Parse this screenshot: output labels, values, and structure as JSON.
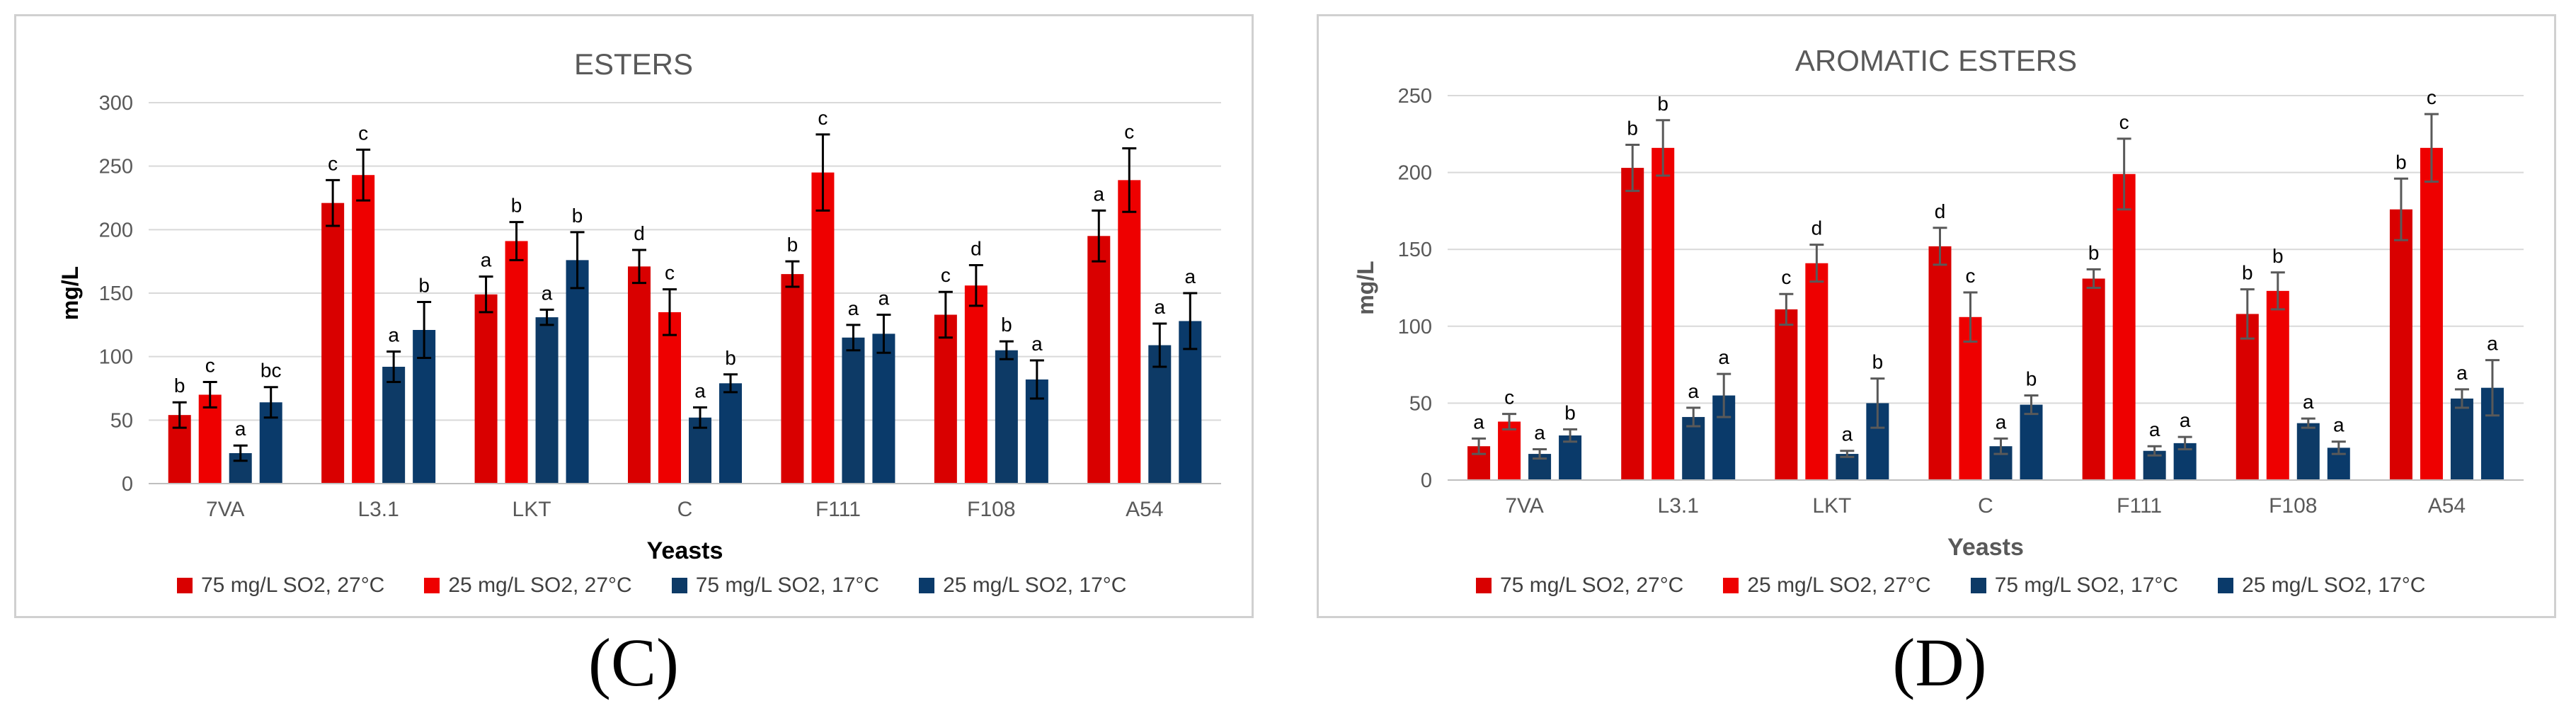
{
  "chart_data": [
    {
      "type": "bar",
      "title": "ESTERS",
      "panel_label": "(C)",
      "xlabel": "Yeasts",
      "ylabel": "mg/L",
      "ylim": [
        0,
        300
      ],
      "yticks": [
        0,
        50,
        100,
        150,
        200,
        250,
        300
      ],
      "categories": [
        "7VA",
        "L3.1",
        "LKT",
        "C",
        "F111",
        "F108",
        "A54"
      ],
      "legend_position": "bottom",
      "series": [
        {
          "name": "75 mg/L SO2, 27°C",
          "color": "#d90000",
          "values": [
            54,
            221,
            149,
            171,
            165,
            133,
            195
          ],
          "errors": [
            10,
            18,
            14,
            13,
            10,
            18,
            20
          ],
          "letters": [
            "b",
            "c",
            "a",
            "d",
            "b",
            "c",
            "a"
          ]
        },
        {
          "name": "25 mg/L SO2, 27°C",
          "color": "#ee0000",
          "values": [
            70,
            243,
            191,
            135,
            245,
            156,
            239
          ],
          "errors": [
            10,
            20,
            15,
            18,
            30,
            16,
            25
          ],
          "letters": [
            "c",
            "c",
            "b",
            "c",
            "c",
            "d",
            "c"
          ]
        },
        {
          "name": "75 mg/L SO2, 17°C",
          "color": "#0d3a66",
          "values": [
            24,
            92,
            131,
            52,
            115,
            105,
            109
          ],
          "errors": [
            6,
            12,
            6,
            8,
            10,
            7,
            17
          ],
          "letters": [
            "a",
            "a",
            "a",
            "a",
            "a",
            "b",
            "a"
          ]
        },
        {
          "name": "25 mg/L SO2, 17°C",
          "color": "#0a3a6a",
          "values": [
            64,
            121,
            176,
            79,
            118,
            82,
            128
          ],
          "errors": [
            12,
            22,
            22,
            7,
            15,
            15,
            22
          ],
          "letters": [
            "bc",
            "b",
            "b",
            "b",
            "a",
            "a",
            "a"
          ]
        }
      ]
    },
    {
      "type": "bar",
      "title": "AROMATIC ESTERS",
      "panel_label": "(D)",
      "xlabel": "Yeasts",
      "ylabel": "mg/L",
      "ylim": [
        0,
        250
      ],
      "yticks": [
        0,
        50,
        100,
        150,
        200,
        250
      ],
      "categories": [
        "7VA",
        "L3.1",
        "LKT",
        "C",
        "F111",
        "F108",
        "A54"
      ],
      "legend_position": "bottom",
      "series": [
        {
          "name": "75 mg/L SO2, 27°C",
          "color": "#d90000",
          "values": [
            22,
            203,
            111,
            152,
            131,
            108,
            176
          ],
          "errors": [
            5,
            15,
            10,
            12,
            6,
            16,
            20
          ],
          "letters": [
            "a",
            "b",
            "c",
            "d",
            "b",
            "b",
            "b"
          ]
        },
        {
          "name": "25 mg/L SO2, 27°C",
          "color": "#ee0000",
          "values": [
            38,
            216,
            141,
            106,
            199,
            123,
            216
          ],
          "errors": [
            5,
            18,
            12,
            16,
            23,
            12,
            22
          ],
          "letters": [
            "c",
            "b",
            "d",
            "c",
            "c",
            "b",
            "c"
          ]
        },
        {
          "name": "75 mg/L SO2, 17°C",
          "color": "#0d3a66",
          "values": [
            17,
            41,
            17,
            22,
            19,
            37,
            53
          ],
          "errors": [
            3,
            6,
            2,
            5,
            3,
            3,
            6
          ],
          "letters": [
            "a",
            "a",
            "a",
            "a",
            "a",
            "a",
            "a"
          ]
        },
        {
          "name": "25 mg/L SO2, 17°C",
          "color": "#0a3a6a",
          "values": [
            29,
            55,
            50,
            49,
            24,
            21,
            60
          ],
          "errors": [
            4,
            14,
            16,
            6,
            4,
            4,
            18
          ],
          "letters": [
            "b",
            "a",
            "b",
            "b",
            "a",
            "a",
            "a"
          ]
        }
      ]
    }
  ]
}
